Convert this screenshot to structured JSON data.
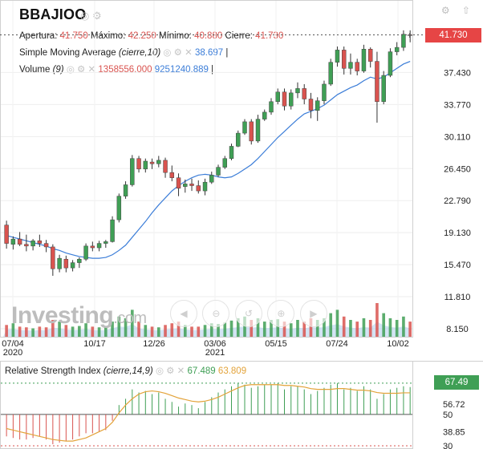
{
  "header": {
    "ticker": "BBAJIOO",
    "ticker_icons": "◎ ⚙",
    "window_icons": "⚙ ⇧"
  },
  "ohlc": {
    "open_label": "Apertura:",
    "open": "41.750",
    "high_label": "Máximo:",
    "high": "42.250",
    "low_label": "Mínimo:",
    "low": "40.880",
    "close_label": "Cierre:",
    "close": "41.730"
  },
  "sma": {
    "name": "Simple Moving Average",
    "params": "(cierre,10)",
    "icons": "◎ ⚙ ✕",
    "value": "38.697",
    "bar": "|"
  },
  "volume": {
    "name": "Volume",
    "params": "(9)",
    "icons": "◎ ⚙ ✕",
    "value1": "1358556.000",
    "value2": "9251240.889",
    "bar": "|"
  },
  "rsi": {
    "name": "Relative Strength Index",
    "params": "(cierre,14,9)",
    "icons": "◎ ⚙ ✕",
    "value": "67.489",
    "signal": "63.809",
    "tag": "67.49"
  },
  "price_tag": "41.730",
  "logo": {
    "main": "Investing",
    "suffix": ".com"
  },
  "nav_buttons": [
    "◀",
    "⊖",
    "↺",
    "⊕",
    "▶"
  ],
  "colors": {
    "up": "#3f9f55",
    "down": "#d9534f",
    "sma": "#3b7dd8",
    "rsi_signal": "#e3a33a",
    "volume_area": "#9ec3e6"
  },
  "chart_data": [
    {
      "type": "candlestick",
      "title": "BBAJIOO",
      "x_tick_labels": [
        "07/04\n2020",
        "10/17",
        "12/26",
        "03/06\n2021",
        "05/15",
        "07/24",
        "10/02"
      ],
      "y_tick_labels": [
        "41.730",
        "37.430",
        "33.770",
        "30.110",
        "26.450",
        "22.790",
        "19.130",
        "15.470",
        "11.810",
        "8.150"
      ],
      "ylim": [
        8.15,
        41.73
      ],
      "candles": [
        {
          "o": 20.0,
          "h": 20.5,
          "l": 17.3,
          "c": 17.9
        },
        {
          "o": 17.8,
          "h": 18.7,
          "l": 17.2,
          "c": 18.4
        },
        {
          "o": 18.4,
          "h": 19.2,
          "l": 17.6,
          "c": 17.8
        },
        {
          "o": 17.8,
          "h": 18.9,
          "l": 17.0,
          "c": 17.6
        },
        {
          "o": 17.6,
          "h": 18.4,
          "l": 17.1,
          "c": 18.2
        },
        {
          "o": 18.2,
          "h": 18.9,
          "l": 17.5,
          "c": 17.9
        },
        {
          "o": 17.9,
          "h": 18.3,
          "l": 16.9,
          "c": 17.5
        },
        {
          "o": 17.5,
          "h": 17.8,
          "l": 14.2,
          "c": 15.0
        },
        {
          "o": 15.0,
          "h": 16.6,
          "l": 14.6,
          "c": 16.2
        },
        {
          "o": 16.1,
          "h": 16.5,
          "l": 14.6,
          "c": 15.1
        },
        {
          "o": 15.1,
          "h": 16.0,
          "l": 14.7,
          "c": 15.7
        },
        {
          "o": 15.7,
          "h": 16.3,
          "l": 15.1,
          "c": 16.1
        },
        {
          "o": 16.1,
          "h": 17.9,
          "l": 15.9,
          "c": 17.6
        },
        {
          "o": 17.6,
          "h": 18.1,
          "l": 17.0,
          "c": 17.4
        },
        {
          "o": 17.4,
          "h": 18.2,
          "l": 17.0,
          "c": 17.9
        },
        {
          "o": 17.9,
          "h": 18.3,
          "l": 17.4,
          "c": 18.1
        },
        {
          "o": 18.1,
          "h": 21.0,
          "l": 18.0,
          "c": 20.6
        },
        {
          "o": 20.6,
          "h": 23.6,
          "l": 20.3,
          "c": 23.3
        },
        {
          "o": 23.3,
          "h": 25.0,
          "l": 23.0,
          "c": 24.6
        },
        {
          "o": 24.6,
          "h": 28.0,
          "l": 24.4,
          "c": 27.6
        },
        {
          "o": 27.6,
          "h": 27.9,
          "l": 26.0,
          "c": 26.4
        },
        {
          "o": 26.4,
          "h": 27.6,
          "l": 26.0,
          "c": 27.3
        },
        {
          "o": 27.2,
          "h": 27.6,
          "l": 26.4,
          "c": 27.0
        },
        {
          "o": 27.0,
          "h": 27.9,
          "l": 26.6,
          "c": 27.4
        },
        {
          "o": 27.4,
          "h": 27.7,
          "l": 25.4,
          "c": 26.0
        },
        {
          "o": 26.0,
          "h": 26.8,
          "l": 25.0,
          "c": 25.4
        },
        {
          "o": 25.4,
          "h": 25.9,
          "l": 23.3,
          "c": 24.2
        },
        {
          "o": 24.4,
          "h": 25.2,
          "l": 23.7,
          "c": 24.7
        },
        {
          "o": 24.7,
          "h": 25.3,
          "l": 23.9,
          "c": 24.5
        },
        {
          "o": 24.5,
          "h": 25.1,
          "l": 23.6,
          "c": 23.9
        },
        {
          "o": 23.9,
          "h": 25.3,
          "l": 23.4,
          "c": 24.9
        },
        {
          "o": 24.9,
          "h": 26.1,
          "l": 24.7,
          "c": 25.7
        },
        {
          "o": 25.7,
          "h": 26.9,
          "l": 25.5,
          "c": 26.6
        },
        {
          "o": 26.6,
          "h": 27.9,
          "l": 26.4,
          "c": 27.6
        },
        {
          "o": 27.6,
          "h": 29.3,
          "l": 27.4,
          "c": 29.0
        },
        {
          "o": 29.0,
          "h": 30.8,
          "l": 28.9,
          "c": 30.5
        },
        {
          "o": 30.5,
          "h": 32.1,
          "l": 30.3,
          "c": 31.8
        },
        {
          "o": 31.8,
          "h": 32.1,
          "l": 29.2,
          "c": 29.6
        },
        {
          "o": 29.6,
          "h": 32.6,
          "l": 29.4,
          "c": 32.1
        },
        {
          "o": 32.1,
          "h": 33.2,
          "l": 31.9,
          "c": 32.9
        },
        {
          "o": 32.9,
          "h": 34.5,
          "l": 32.6,
          "c": 34.1
        },
        {
          "o": 34.1,
          "h": 35.6,
          "l": 33.8,
          "c": 35.2
        },
        {
          "o": 35.2,
          "h": 35.6,
          "l": 33.1,
          "c": 33.6
        },
        {
          "o": 33.6,
          "h": 35.5,
          "l": 33.2,
          "c": 35.1
        },
        {
          "o": 35.1,
          "h": 36.3,
          "l": 34.5,
          "c": 35.6
        },
        {
          "o": 35.6,
          "h": 36.1,
          "l": 33.8,
          "c": 34.4
        },
        {
          "o": 34.4,
          "h": 35.1,
          "l": 32.2,
          "c": 33.1
        },
        {
          "o": 33.1,
          "h": 34.6,
          "l": 31.9,
          "c": 34.2
        },
        {
          "o": 34.2,
          "h": 36.5,
          "l": 33.8,
          "c": 36.1
        },
        {
          "o": 36.1,
          "h": 39.0,
          "l": 35.9,
          "c": 38.6
        },
        {
          "o": 38.6,
          "h": 40.4,
          "l": 38.1,
          "c": 40.0
        },
        {
          "o": 40.0,
          "h": 40.4,
          "l": 37.2,
          "c": 37.9
        },
        {
          "o": 37.9,
          "h": 39.6,
          "l": 37.2,
          "c": 38.6
        },
        {
          "o": 38.6,
          "h": 39.0,
          "l": 37.1,
          "c": 37.6
        },
        {
          "o": 37.6,
          "h": 40.6,
          "l": 37.4,
          "c": 40.1
        },
        {
          "o": 40.1,
          "h": 40.3,
          "l": 38.0,
          "c": 38.7
        },
        {
          "o": 38.7,
          "h": 39.8,
          "l": 31.7,
          "c": 34.1
        },
        {
          "o": 34.1,
          "h": 37.6,
          "l": 33.8,
          "c": 37.1
        },
        {
          "o": 37.1,
          "h": 40.2,
          "l": 36.9,
          "c": 39.8
        },
        {
          "o": 39.8,
          "h": 40.9,
          "l": 39.4,
          "c": 40.3
        },
        {
          "o": 40.3,
          "h": 42.25,
          "l": 39.9,
          "c": 41.8
        },
        {
          "o": 41.75,
          "h": 42.25,
          "l": 40.88,
          "c": 41.73
        }
      ],
      "sma_10": [
        18.8,
        18.6,
        18.4,
        18.2,
        18.0,
        17.8,
        17.6,
        17.3,
        17.1,
        16.8,
        16.6,
        16.4,
        16.3,
        16.2,
        16.2,
        16.3,
        16.6,
        17.1,
        17.7,
        18.6,
        19.5,
        20.4,
        21.4,
        22.3,
        23.1,
        23.9,
        24.5,
        25.0,
        25.4,
        25.7,
        25.8,
        25.7,
        25.5,
        25.4,
        25.5,
        25.9,
        26.4,
        26.9,
        27.6,
        28.4,
        29.2,
        30.0,
        30.7,
        31.4,
        32.1,
        32.7,
        33.0,
        33.3,
        33.7,
        34.3,
        34.9,
        35.3,
        35.7,
        36.0,
        36.5,
        36.9,
        36.7,
        36.9,
        37.4,
        37.9,
        38.4,
        38.7
      ],
      "volume_relative": [
        0.35,
        0.4,
        0.3,
        0.28,
        0.25,
        0.3,
        0.28,
        0.5,
        0.45,
        0.35,
        0.3,
        0.32,
        0.4,
        0.3,
        0.28,
        0.3,
        0.45,
        0.6,
        0.55,
        0.8,
        0.45,
        0.35,
        0.3,
        0.28,
        0.35,
        0.4,
        0.45,
        0.35,
        0.3,
        0.3,
        0.35,
        0.4,
        0.38,
        0.42,
        0.48,
        0.55,
        0.6,
        0.5,
        0.55,
        0.45,
        0.5,
        0.52,
        0.45,
        0.4,
        0.5,
        0.45,
        0.55,
        0.5,
        0.55,
        0.7,
        0.8,
        0.6,
        0.5,
        0.45,
        0.55,
        0.5,
        1.0,
        0.7,
        0.55,
        0.5,
        0.6,
        0.45
      ]
    },
    {
      "type": "line",
      "title": "Relative Strength Index",
      "y_tick_labels": [
        "67.49",
        "56.72",
        "50",
        "38.85",
        "30"
      ],
      "ylim": [
        30,
        74
      ],
      "rsi_histogram_relative_to_50": [
        -14,
        -15,
        -16,
        -16,
        -15,
        -14,
        -16,
        -19,
        -18,
        -17,
        -16,
        -14,
        -12,
        -12,
        -11,
        -10,
        -4,
        6,
        10,
        16,
        14,
        15,
        13,
        14,
        10,
        8,
        5,
        7,
        6,
        4,
        8,
        11,
        14,
        16,
        18,
        20,
        19,
        17,
        18,
        19,
        19,
        20,
        16,
        18,
        18,
        16,
        13,
        15,
        17,
        19,
        20,
        16,
        17,
        15,
        18,
        16,
        10,
        13,
        16,
        17,
        18,
        17.5
      ],
      "signal_line": [
        41,
        40,
        39,
        38,
        37,
        36,
        35,
        34,
        33.5,
        33,
        33,
        34,
        35,
        37,
        39,
        41,
        45,
        51,
        56,
        60,
        63,
        64.5,
        65,
        64.5,
        63.5,
        62,
        60.5,
        59.5,
        58.5,
        58,
        58.5,
        59.5,
        61,
        63,
        65,
        67,
        68.5,
        69,
        69,
        69,
        69,
        69,
        68.5,
        68.5,
        68,
        67.5,
        66.5,
        66,
        66,
        66,
        66.5,
        66.5,
        66,
        65.5,
        65.5,
        65,
        64,
        63.5,
        63.5,
        63.5,
        63.8,
        63.8
      ]
    }
  ]
}
